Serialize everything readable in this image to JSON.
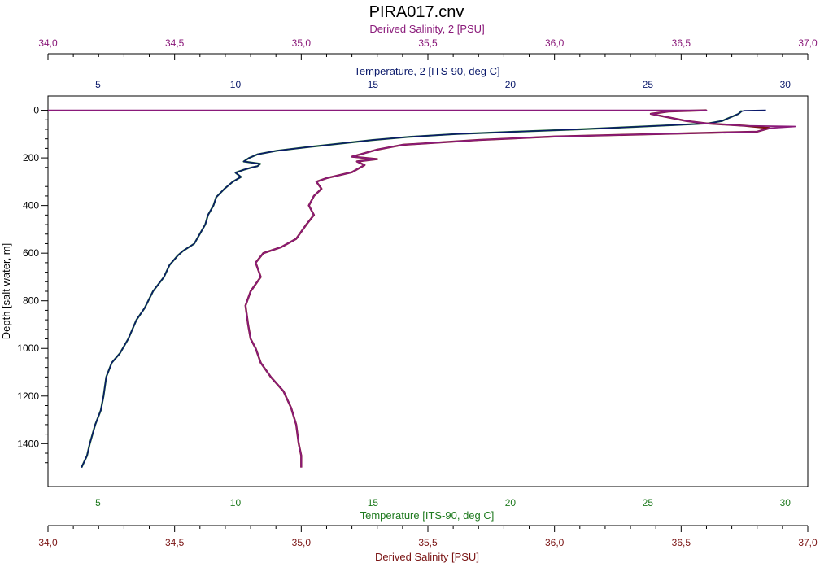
{
  "colors": {
    "salinity2": "#8a1a7a",
    "temperature2": "#0b1a6b",
    "temperature": "#1f7a1f",
    "salinity": "#7a1414",
    "axis": "#000000",
    "depth_label": "#000000"
  },
  "chart_data": {
    "type": "line",
    "title": "PIRA017.cnv",
    "depth_axis": {
      "label": "Depth [salt water, m]",
      "ticks": [
        0,
        200,
        400,
        600,
        800,
        1000,
        1200,
        1400
      ],
      "range": [
        -60,
        1580
      ],
      "inverted": true
    },
    "axes": {
      "salinity2": {
        "label": "Derived Salinity, 2 [PSU]",
        "range": [
          34.0,
          37.0
        ],
        "ticks": [
          "34,0",
          "34,5",
          "35,0",
          "35,5",
          "36,0",
          "36,5",
          "37,0"
        ]
      },
      "temperature2": {
        "label": "Temperature, 2 [ITS-90, deg C]",
        "range": [
          3.18,
          30.82
        ],
        "ticks": [
          "5",
          "10",
          "15",
          "20",
          "25",
          "30"
        ]
      },
      "temperature": {
        "label": "Temperature [ITS-90, deg C]",
        "range": [
          3.18,
          30.82
        ],
        "ticks": [
          "5",
          "10",
          "15",
          "20",
          "25",
          "30"
        ]
      },
      "salinity": {
        "label": "Derived Salinity [PSU]",
        "range": [
          34.0,
          37.0
        ],
        "ticks": [
          "34,0",
          "34,5",
          "35,0",
          "35,5",
          "36,0",
          "36,5",
          "37,0"
        ]
      }
    },
    "series": [
      {
        "name": "Temperature [ITS-90, deg C]",
        "axis": "temperature",
        "points": [
          [
            28.4,
            0
          ],
          [
            28.4,
            5
          ],
          [
            28.3,
            15
          ],
          [
            28.1,
            25
          ],
          [
            27.9,
            35
          ],
          [
            27.7,
            45
          ],
          [
            27.2,
            55
          ],
          [
            26.0,
            62
          ],
          [
            24.5,
            70
          ],
          [
            22.5,
            80
          ],
          [
            20.2,
            90
          ],
          [
            18.0,
            100
          ],
          [
            16.3,
            112
          ],
          [
            15.0,
            125
          ],
          [
            13.8,
            140
          ],
          [
            12.6,
            155
          ],
          [
            11.5,
            170
          ],
          [
            10.8,
            185
          ],
          [
            10.5,
            200
          ],
          [
            10.3,
            215
          ],
          [
            10.9,
            225
          ],
          [
            10.8,
            235
          ],
          [
            10.6,
            240
          ],
          [
            10.3,
            250
          ],
          [
            10.0,
            262
          ],
          [
            10.2,
            280
          ],
          [
            9.9,
            300
          ],
          [
            9.6,
            330
          ],
          [
            9.3,
            365
          ],
          [
            9.2,
            400
          ],
          [
            9.0,
            440
          ],
          [
            8.9,
            480
          ],
          [
            8.7,
            520
          ],
          [
            8.5,
            560
          ],
          [
            8.1,
            590
          ],
          [
            7.9,
            610
          ],
          [
            7.6,
            650
          ],
          [
            7.4,
            700
          ],
          [
            7.0,
            760
          ],
          [
            6.7,
            830
          ],
          [
            6.4,
            880
          ],
          [
            6.1,
            960
          ],
          [
            5.8,
            1020
          ],
          [
            5.5,
            1060
          ],
          [
            5.3,
            1120
          ],
          [
            5.2,
            1200
          ],
          [
            5.1,
            1260
          ],
          [
            4.9,
            1320
          ],
          [
            4.7,
            1400
          ],
          [
            4.6,
            1450
          ],
          [
            4.4,
            1500
          ]
        ]
      },
      {
        "name": "Temperature, 2 [ITS-90, deg C]",
        "axis": "temperature2",
        "points": [
          [
            29.3,
            0
          ],
          [
            28.5,
            2
          ],
          [
            28.4,
            5
          ],
          [
            28.3,
            15
          ],
          [
            28.1,
            25
          ],
          [
            27.9,
            35
          ],
          [
            27.7,
            45
          ],
          [
            27.2,
            55
          ],
          [
            26.0,
            62
          ],
          [
            24.5,
            70
          ],
          [
            22.5,
            80
          ],
          [
            20.2,
            90
          ],
          [
            18.0,
            100
          ],
          [
            16.3,
            112
          ],
          [
            15.0,
            125
          ],
          [
            13.8,
            140
          ],
          [
            12.6,
            155
          ],
          [
            11.5,
            170
          ],
          [
            10.8,
            185
          ],
          [
            10.5,
            200
          ],
          [
            10.3,
            215
          ],
          [
            10.9,
            225
          ],
          [
            10.8,
            235
          ],
          [
            10.6,
            240
          ],
          [
            10.3,
            250
          ],
          [
            10.0,
            262
          ],
          [
            10.2,
            280
          ],
          [
            9.9,
            300
          ],
          [
            9.6,
            330
          ],
          [
            9.3,
            365
          ],
          [
            9.2,
            400
          ],
          [
            9.0,
            440
          ],
          [
            8.9,
            480
          ],
          [
            8.7,
            520
          ],
          [
            8.5,
            560
          ],
          [
            8.1,
            590
          ],
          [
            7.9,
            610
          ],
          [
            7.6,
            650
          ],
          [
            7.4,
            700
          ],
          [
            7.0,
            760
          ],
          [
            6.7,
            830
          ],
          [
            6.4,
            880
          ],
          [
            6.1,
            960
          ],
          [
            5.8,
            1020
          ],
          [
            5.5,
            1060
          ],
          [
            5.3,
            1120
          ],
          [
            5.2,
            1200
          ],
          [
            5.1,
            1260
          ],
          [
            4.9,
            1320
          ],
          [
            4.7,
            1400
          ],
          [
            4.6,
            1450
          ],
          [
            4.4,
            1500
          ]
        ]
      },
      {
        "name": "Derived Salinity [PSU]",
        "axis": "salinity",
        "points": [
          [
            36.6,
            0
          ],
          [
            36.45,
            5
          ],
          [
            36.38,
            15
          ],
          [
            36.45,
            30
          ],
          [
            36.52,
            45
          ],
          [
            36.6,
            55
          ],
          [
            36.75,
            65
          ],
          [
            36.85,
            75
          ],
          [
            36.8,
            90
          ],
          [
            36.4,
            100
          ],
          [
            36.0,
            110
          ],
          [
            35.7,
            125
          ],
          [
            35.4,
            145
          ],
          [
            35.3,
            165
          ],
          [
            35.2,
            195
          ],
          [
            35.3,
            205
          ],
          [
            35.22,
            215
          ],
          [
            35.25,
            230
          ],
          [
            35.2,
            260
          ],
          [
            35.1,
            285
          ],
          [
            35.06,
            300
          ],
          [
            35.08,
            330
          ],
          [
            35.05,
            360
          ],
          [
            35.03,
            400
          ],
          [
            35.05,
            440
          ],
          [
            35.02,
            480
          ],
          [
            34.98,
            540
          ],
          [
            34.92,
            575
          ],
          [
            34.85,
            600
          ],
          [
            34.82,
            640
          ],
          [
            34.84,
            700
          ],
          [
            34.8,
            760
          ],
          [
            34.78,
            820
          ],
          [
            34.79,
            900
          ],
          [
            34.8,
            960
          ],
          [
            34.82,
            1000
          ],
          [
            34.84,
            1060
          ],
          [
            34.88,
            1120
          ],
          [
            34.93,
            1180
          ],
          [
            34.96,
            1250
          ],
          [
            34.98,
            1320
          ],
          [
            34.99,
            1400
          ],
          [
            35.0,
            1450
          ],
          [
            35.0,
            1500
          ]
        ]
      },
      {
        "name": "Derived Salinity, 2 [PSU]",
        "axis": "salinity2",
        "points": [
          [
            34.0,
            0
          ],
          [
            36.6,
            0
          ],
          [
            36.45,
            5
          ],
          [
            36.38,
            15
          ],
          [
            36.45,
            30
          ],
          [
            36.52,
            45
          ],
          [
            36.6,
            55
          ],
          [
            36.75,
            65
          ],
          [
            36.95,
            68
          ],
          [
            36.85,
            75
          ],
          [
            36.8,
            90
          ],
          [
            36.4,
            100
          ],
          [
            36.0,
            110
          ],
          [
            35.7,
            125
          ],
          [
            35.4,
            145
          ],
          [
            35.3,
            165
          ],
          [
            35.2,
            195
          ],
          [
            35.3,
            205
          ],
          [
            35.22,
            215
          ],
          [
            35.25,
            230
          ],
          [
            35.2,
            260
          ],
          [
            35.1,
            285
          ],
          [
            35.06,
            300
          ],
          [
            35.08,
            330
          ],
          [
            35.05,
            360
          ],
          [
            35.03,
            400
          ],
          [
            35.05,
            440
          ],
          [
            35.02,
            480
          ],
          [
            34.98,
            540
          ],
          [
            34.92,
            575
          ],
          [
            34.85,
            600
          ],
          [
            34.82,
            640
          ],
          [
            34.84,
            700
          ],
          [
            34.8,
            760
          ],
          [
            34.78,
            820
          ],
          [
            34.79,
            900
          ],
          [
            34.8,
            960
          ],
          [
            34.82,
            1000
          ],
          [
            34.84,
            1060
          ],
          [
            34.88,
            1120
          ],
          [
            34.93,
            1180
          ],
          [
            34.96,
            1250
          ],
          [
            34.98,
            1320
          ],
          [
            34.99,
            1400
          ],
          [
            35.0,
            1450
          ],
          [
            35.0,
            1500
          ]
        ]
      }
    ]
  }
}
